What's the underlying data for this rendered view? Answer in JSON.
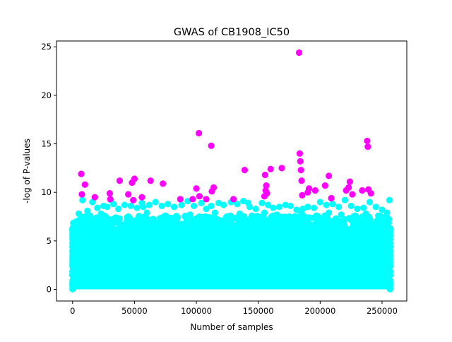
{
  "chart_data": {
    "type": "scatter",
    "title": "GWAS of CB1908_IC50",
    "xlabel": "Number of samples",
    "ylabel": "-log of P-values",
    "xlim": [
      -13000,
      270000
    ],
    "ylim": [
      -1.2,
      25.6
    ],
    "xticks": [
      0,
      50000,
      100000,
      150000,
      200000,
      250000
    ],
    "xtick_labels": [
      "0",
      "50000",
      "100000",
      "150000",
      "200000",
      "250000"
    ],
    "yticks": [
      0,
      5,
      10,
      15,
      20,
      25
    ],
    "ytick_labels": [
      "0",
      "5",
      "10",
      "15",
      "20",
      "25"
    ],
    "grid": false,
    "legend": "none",
    "colors": {
      "below_threshold": "#00ffff",
      "above_threshold": "#ff00ff"
    },
    "threshold": 9.2,
    "background_band": {
      "x_range": [
        0,
        256500
      ],
      "y_range": [
        0,
        6.5
      ],
      "description_values": "dense band of points below threshold"
    },
    "series": [
      {
        "points": [
          [
            5000,
            7.8
          ],
          [
            8000,
            9.2
          ],
          [
            12000,
            8.1
          ],
          [
            16000,
            9.0
          ],
          [
            20000,
            8.4
          ],
          [
            25000,
            8.6
          ],
          [
            28000,
            8.5
          ],
          [
            33000,
            8.8
          ],
          [
            37000,
            8.3
          ],
          [
            42000,
            8.7
          ],
          [
            47000,
            8.6
          ],
          [
            52000,
            8.4
          ],
          [
            57000,
            8.5
          ],
          [
            62000,
            8.7
          ],
          [
            67000,
            9.0
          ],
          [
            72000,
            8.6
          ],
          [
            77000,
            8.8
          ],
          [
            82000,
            8.5
          ],
          [
            88000,
            8.7
          ],
          [
            93000,
            9.1
          ],
          [
            98000,
            8.6
          ],
          [
            104000,
            8.9
          ],
          [
            108000,
            8.3
          ],
          [
            112000,
            8.6
          ],
          [
            118000,
            8.9
          ],
          [
            122000,
            8.7
          ],
          [
            128000,
            9.0
          ],
          [
            133000,
            8.8
          ],
          [
            138000,
            9.1
          ],
          [
            143000,
            8.5
          ],
          [
            148000,
            8.3
          ],
          [
            153000,
            8.9
          ],
          [
            158000,
            8.7
          ],
          [
            162000,
            8.4
          ],
          [
            167000,
            8.5
          ],
          [
            172000,
            8.7
          ],
          [
            176000,
            8.6
          ],
          [
            181000,
            8.2
          ],
          [
            186000,
            8.3
          ],
          [
            190000,
            8.5
          ],
          [
            195000,
            8.4
          ],
          [
            200000,
            9.0
          ],
          [
            205000,
            8.7
          ],
          [
            210000,
            8.8
          ],
          [
            215000,
            8.5
          ],
          [
            220000,
            9.2
          ],
          [
            225000,
            8.6
          ],
          [
            230000,
            8.3
          ],
          [
            235000,
            8.4
          ],
          [
            240000,
            9.0
          ],
          [
            245000,
            8.5
          ],
          [
            250000,
            8.2
          ],
          [
            254000,
            7.9
          ],
          [
            256000,
            9.2
          ],
          [
            31000,
            9.2
          ],
          [
            56000,
            8.9
          ],
          [
            142000,
            8.9
          ],
          [
            9000,
            7.4
          ],
          [
            14000,
            7.6
          ],
          [
            23000,
            7.8
          ],
          [
            45000,
            7.5
          ],
          [
            60000,
            7.9
          ],
          [
            75000,
            7.6
          ],
          [
            85000,
            7.4
          ],
          [
            95000,
            7.7
          ],
          [
            115000,
            7.9
          ],
          [
            125000,
            7.5
          ],
          [
            135000,
            7.8
          ],
          [
            145000,
            7.6
          ],
          [
            155000,
            7.9
          ],
          [
            165000,
            7.7
          ],
          [
            175000,
            7.5
          ],
          [
            185000,
            7.8
          ],
          [
            197000,
            7.6
          ],
          [
            207000,
            7.9
          ],
          [
            217000,
            7.7
          ],
          [
            227000,
            7.5
          ],
          [
            237000,
            7.8
          ],
          [
            247000,
            7.6
          ],
          [
            3000,
            6.9
          ],
          [
            18000,
            7.1
          ],
          [
            35000,
            7.2
          ],
          [
            50000,
            7.0
          ],
          [
            65000,
            7.2
          ],
          [
            80000,
            7.0
          ],
          [
            100000,
            7.3
          ],
          [
            120000,
            7.1
          ],
          [
            140000,
            7.2
          ],
          [
            160000,
            7.0
          ],
          [
            180000,
            7.3
          ],
          [
            200000,
            7.1
          ],
          [
            220000,
            7.2
          ],
          [
            240000,
            7.0
          ],
          [
            255000,
            7.1
          ]
        ]
      },
      {
        "points": [
          [
            7000,
            11.9
          ],
          [
            7500,
            9.8
          ],
          [
            10000,
            10.8
          ],
          [
            18000,
            9.5
          ],
          [
            30000,
            9.9
          ],
          [
            30500,
            9.3
          ],
          [
            38000,
            11.2
          ],
          [
            45000,
            9.8
          ],
          [
            48000,
            11.0
          ],
          [
            49000,
            9.2
          ],
          [
            50000,
            11.4
          ],
          [
            56000,
            9.5
          ],
          [
            63000,
            11.2
          ],
          [
            73000,
            10.9
          ],
          [
            87000,
            9.3
          ],
          [
            97000,
            9.3
          ],
          [
            100000,
            10.4
          ],
          [
            102000,
            16.1
          ],
          [
            102500,
            9.6
          ],
          [
            108000,
            9.3
          ],
          [
            112000,
            14.8
          ],
          [
            112500,
            10.1
          ],
          [
            114000,
            10.5
          ],
          [
            130000,
            9.3
          ],
          [
            139000,
            12.3
          ],
          [
            155000,
            9.6
          ],
          [
            155500,
            11.8
          ],
          [
            156000,
            10.2
          ],
          [
            156500,
            10.7
          ],
          [
            157000,
            9.9
          ],
          [
            160000,
            12.4
          ],
          [
            169000,
            12.5
          ],
          [
            183000,
            24.4
          ],
          [
            183500,
            14.0
          ],
          [
            184000,
            13.2
          ],
          [
            184500,
            12.3
          ],
          [
            185000,
            11.2
          ],
          [
            185500,
            9.7
          ],
          [
            190000,
            10.0
          ],
          [
            191000,
            10.4
          ],
          [
            196000,
            10.2
          ],
          [
            204000,
            10.7
          ],
          [
            207000,
            11.7
          ],
          [
            209000,
            9.4
          ],
          [
            221000,
            10.2
          ],
          [
            223000,
            10.5
          ],
          [
            224000,
            11.1
          ],
          [
            226000,
            9.8
          ],
          [
            234000,
            10.2
          ],
          [
            238000,
            15.3
          ],
          [
            238500,
            14.7
          ],
          [
            239000,
            10.3
          ],
          [
            241000,
            9.9
          ]
        ]
      }
    ]
  }
}
